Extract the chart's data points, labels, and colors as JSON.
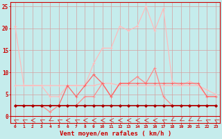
{
  "title": "",
  "xlabel": "Vent moyen/en rafales ( km/h )",
  "bg_color": "#c5ecec",
  "grid_color": "#d4a0a0",
  "xlim": [
    -0.5,
    23.5
  ],
  "ylim": [
    -1.5,
    26
  ],
  "x": [
    0,
    1,
    2,
    3,
    4,
    5,
    6,
    7,
    8,
    9,
    10,
    11,
    12,
    13,
    14,
    15,
    16,
    17,
    18,
    19,
    20,
    21,
    22,
    23
  ],
  "series": [
    {
      "name": "rafales_lightest",
      "color": "#ffbbbb",
      "linewidth": 0.9,
      "marker": "+",
      "markersize": 3,
      "zorder": 2,
      "y": [
        20.5,
        7.0,
        7.0,
        7.0,
        7.0,
        7.0,
        7.0,
        7.0,
        7.0,
        12.0,
        15.5,
        15.5,
        20.5,
        19.5,
        20.5,
        25.0,
        19.5,
        24.5,
        8.0,
        7.0,
        8.0,
        7.0,
        4.5,
        4.5
      ]
    },
    {
      "name": "moyen_lightest",
      "color": "#ffbbbb",
      "linewidth": 0.9,
      "marker": "+",
      "markersize": 3,
      "zorder": 2,
      "y": [
        7.0,
        7.0,
        7.0,
        7.0,
        4.5,
        4.5,
        7.0,
        7.0,
        7.0,
        7.0,
        7.5,
        7.5,
        7.0,
        7.0,
        7.0,
        7.0,
        7.0,
        7.0,
        7.0,
        7.0,
        7.0,
        7.0,
        6.0,
        5.0
      ]
    },
    {
      "name": "moyen_medium",
      "color": "#ff8888",
      "linewidth": 0.9,
      "marker": "+",
      "markersize": 3,
      "zorder": 3,
      "y": [
        2.5,
        2.5,
        2.5,
        2.5,
        1.0,
        2.5,
        2.5,
        2.5,
        4.5,
        4.5,
        7.5,
        4.5,
        7.5,
        7.5,
        9.0,
        7.5,
        11.0,
        4.5,
        2.5,
        2.5,
        2.5,
        2.5,
        2.5,
        2.5
      ]
    },
    {
      "name": "rafales_medium",
      "color": "#ff6666",
      "linewidth": 0.9,
      "marker": "+",
      "markersize": 3,
      "zorder": 3,
      "y": [
        2.5,
        2.5,
        2.5,
        2.5,
        2.5,
        2.5,
        7.0,
        4.5,
        7.0,
        9.5,
        7.5,
        4.5,
        7.5,
        7.5,
        7.5,
        7.5,
        7.5,
        7.5,
        7.5,
        7.5,
        7.5,
        7.5,
        4.5,
        4.5
      ]
    },
    {
      "name": "vent_dark",
      "color": "#aa0000",
      "linewidth": 1.2,
      "marker": "D",
      "markersize": 2,
      "zorder": 5,
      "y": [
        2.5,
        2.5,
        2.5,
        2.5,
        2.5,
        2.5,
        2.5,
        2.5,
        2.5,
        2.5,
        2.5,
        2.5,
        2.5,
        2.5,
        2.5,
        2.5,
        2.5,
        2.5,
        2.5,
        2.5,
        2.5,
        2.5,
        2.5,
        2.5
      ]
    }
  ],
  "yticks": [
    0,
    5,
    10,
    15,
    20,
    25
  ],
  "xtick_labels": [
    "0",
    "1",
    "2",
    "3",
    "4",
    "5",
    "6",
    "7",
    "8",
    "9",
    "10",
    "11",
    "12",
    "13",
    "14",
    "15",
    "16",
    "17",
    "18",
    "19",
    "20",
    "21",
    "22",
    "23"
  ],
  "arrow_angles_deg": [
    225,
    225,
    270,
    225,
    315,
    225,
    270,
    225,
    270,
    270,
    270,
    270,
    270,
    270,
    270,
    270,
    270,
    225,
    315,
    315,
    315,
    315,
    225,
    225
  ]
}
